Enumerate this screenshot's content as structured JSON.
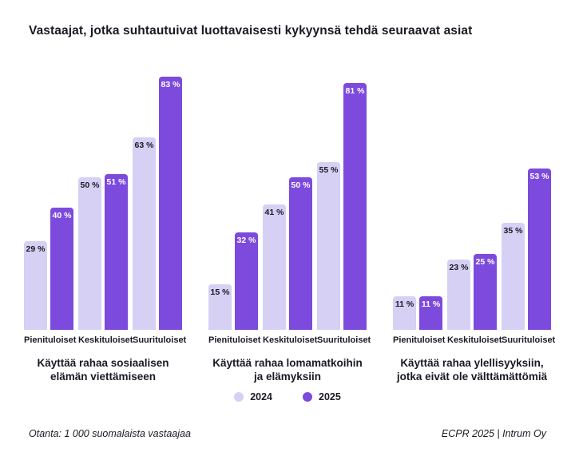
{
  "title": "Vastaajat, jotka suhtautuivat luottavaisesti kykyynsä tehdä seuraavat asiat",
  "legend": {
    "items": [
      {
        "label": "2024",
        "color": "#D6D0F4"
      },
      {
        "label": "2025",
        "color": "#7C4ADC"
      }
    ]
  },
  "footer": {
    "left": "Otanta: 1 000 suomalaista vastaajaa",
    "right": "ECPR 2025 | Intrum Oy"
  },
  "chart_data": {
    "type": "bar",
    "title": "Vastaajat, jotka suhtautuivat luottavaisesti kykyynsä tehdä seuraavat asiat",
    "categories": [
      "Pienituloiset",
      "Keskituloiset",
      "Suurituloiset"
    ],
    "series_names": [
      "2024",
      "2025"
    ],
    "value_suffix": " %",
    "ylim": [
      0,
      100
    ],
    "grid": false,
    "legend_position": "bottom-center",
    "groups": [
      {
        "title_lines": [
          "Käyttää rahaa sosiaalisen",
          "elämän viettämiseen"
        ],
        "series": [
          {
            "name": "2024",
            "values": [
              29,
              50,
              63
            ]
          },
          {
            "name": "2025",
            "values": [
              40,
              51,
              83
            ]
          }
        ]
      },
      {
        "title_lines": [
          "Käyttää rahaa lomamatkoihin",
          "ja elämyksiin"
        ],
        "series": [
          {
            "name": "2024",
            "values": [
              15,
              41,
              55
            ]
          },
          {
            "name": "2025",
            "values": [
              32,
              50,
              81
            ]
          }
        ]
      },
      {
        "title_lines": [
          "Käyttää rahaa ylellisyyksiin,",
          "jotka eivät ole välttämättömiä"
        ],
        "series": [
          {
            "name": "2024",
            "values": [
              11,
              23,
              35
            ]
          },
          {
            "name": "2025",
            "values": [
              11,
              25,
              53
            ]
          }
        ]
      }
    ],
    "colors": {
      "2024": "#D6D0F4",
      "2025": "#7C4ADC",
      "label_on_2024": "#1a1a24",
      "label_on_2025": "#ffffff"
    }
  }
}
